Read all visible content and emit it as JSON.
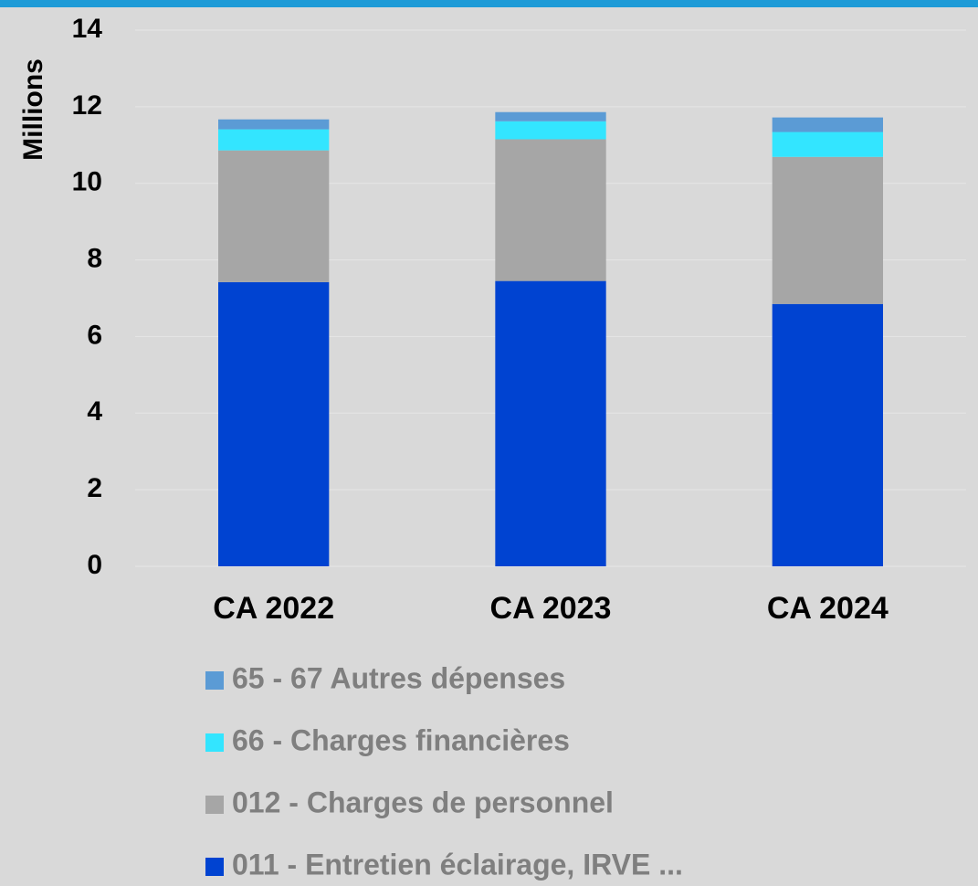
{
  "chart_data": {
    "type": "stacked_bar",
    "y_label": "Millions",
    "categories": [
      "CA 2022",
      "CA 2023",
      "CA 2024"
    ],
    "series": [
      {
        "name": "011 - Entretien éclairage, IRVE ...",
        "color": "#0043d1",
        "values": [
          7.42,
          7.45,
          6.85
        ]
      },
      {
        "name": "012 - Charges de personnel",
        "color": "#a6a6a6",
        "values": [
          3.44,
          3.7,
          3.84
        ]
      },
      {
        "name": "66 - Charges financières",
        "color": "#33e5ff",
        "values": [
          0.55,
          0.47,
          0.65
        ]
      },
      {
        "name": "65 - 67 Autres dépenses",
        "color": "#5b9bd5",
        "values": [
          0.26,
          0.24,
          0.38
        ]
      }
    ],
    "ylim": [
      0,
      14
    ],
    "yticks": [
      0,
      2,
      4,
      6,
      8,
      10,
      12,
      14
    ],
    "grid": true
  }
}
